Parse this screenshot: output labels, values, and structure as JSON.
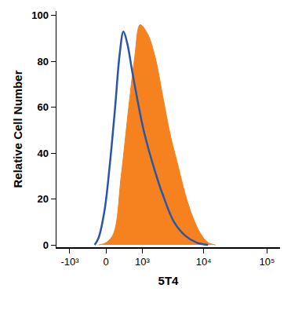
{
  "chart_data": {
    "type": "line",
    "xlabel": "5T4",
    "ylabel": "Relative Cell Number",
    "xlim": [
      -1700,
      160000
    ],
    "xticks": [
      {
        "value": -1000,
        "label": "-10³"
      },
      0,
      {
        "value": 1000,
        "label": "10³"
      },
      {
        "value": 10000,
        "label": "10⁴"
      },
      {
        "value": 100000,
        "label": "10⁵"
      }
    ],
    "ylim": [
      -1,
      102
    ],
    "yticks": [
      0,
      20,
      40,
      60,
      80,
      100
    ],
    "grid": false,
    "series": [
      {
        "type": "area",
        "color": "#f5821f",
        "x": [
          -160,
          0,
          160,
          333,
          531,
          717,
          913,
          1243,
          1665,
          2225,
          2948,
          3890,
          5127,
          6762,
          8901,
          11730,
          15375
        ],
        "values": [
          0,
          1,
          5,
          30,
          60,
          82,
          96,
          92,
          82,
          65,
          48,
          35,
          22,
          12,
          5,
          1,
          0
        ]
      },
      {
        "type": "line",
        "color": "#2a56a6",
        "x": [
          -245,
          -160,
          -32,
          79,
          194,
          297,
          390,
          489,
          644,
          1058,
          1665,
          2225,
          3387,
          5127,
          7745,
          11730
        ],
        "values": [
          0,
          3,
          15,
          35,
          60,
          83,
          93,
          88,
          75,
          50,
          32,
          22,
          10,
          4,
          1,
          0
        ]
      }
    ]
  }
}
